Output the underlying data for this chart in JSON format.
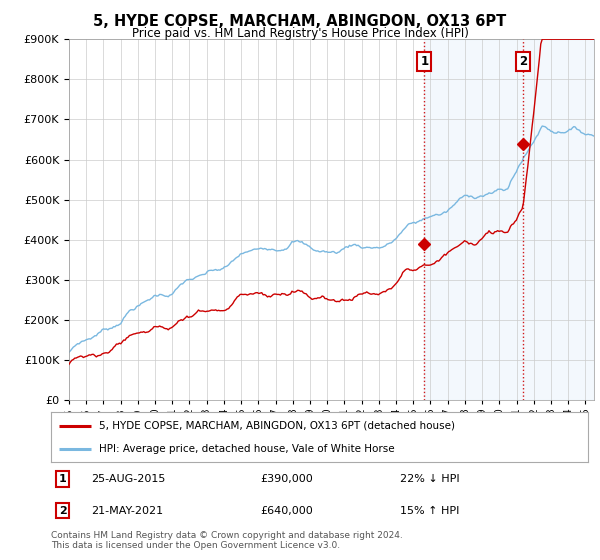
{
  "title": "5, HYDE COPSE, MARCHAM, ABINGDON, OX13 6PT",
  "subtitle": "Price paid vs. HM Land Registry's House Price Index (HPI)",
  "ylim": [
    0,
    900000
  ],
  "xlim_start": 1995.0,
  "xlim_end": 2025.5,
  "legend_line1": "5, HYDE COPSE, MARCHAM, ABINGDON, OX13 6PT (detached house)",
  "legend_line2": "HPI: Average price, detached house, Vale of White Horse",
  "transaction1_date": "25-AUG-2015",
  "transaction1_price": "£390,000",
  "transaction1_note": "22% ↓ HPI",
  "transaction1_year": 2015.65,
  "transaction1_value": 390000,
  "transaction2_date": "21-MAY-2021",
  "transaction2_price": "£640,000",
  "transaction2_note": "15% ↑ HPI",
  "transaction2_year": 2021.38,
  "transaction2_value": 640000,
  "hpi_color": "#7ab8e0",
  "price_color": "#cc0000",
  "vline_color": "#cc0000",
  "dot_color": "#cc0000",
  "background_color": "#ffffff",
  "grid_color": "#cccccc",
  "footer": "Contains HM Land Registry data © Crown copyright and database right 2024.\nThis data is licensed under the Open Government Licence v3.0.",
  "label_box_color": "#cc0000"
}
